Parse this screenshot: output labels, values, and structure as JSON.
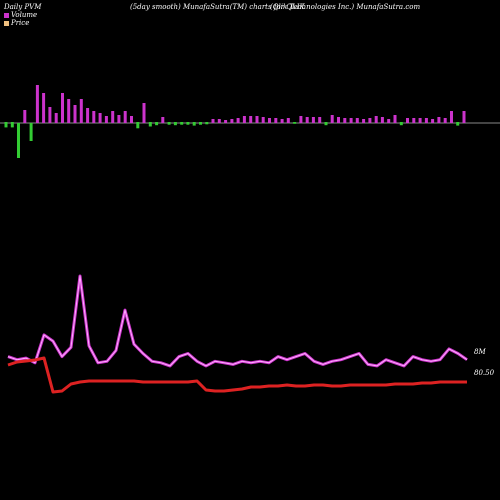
{
  "header": {
    "left": "Daily PVM",
    "center": "(5day smooth) MunafaSutra(TM) charts for QLIK",
    "right": "(Qlik Technologies Inc.) MunafaSutra.com"
  },
  "legend": [
    {
      "label": "Volume",
      "color": "#cc33cc"
    },
    {
      "label": "Price",
      "color": "#f0c080"
    }
  ],
  "chart_data": {
    "type": "bar+line",
    "volume_bars": [
      {
        "v": 0.12,
        "c": "neg"
      },
      {
        "v": 0.12,
        "c": "neg"
      },
      {
        "v": 0.35,
        "c": "neg"
      },
      {
        "v": 0.13,
        "c": "pos"
      },
      {
        "v": 0.18,
        "c": "neg"
      },
      {
        "v": 0.38,
        "c": "pos"
      },
      {
        "v": 0.3,
        "c": "pos"
      },
      {
        "v": 0.16,
        "c": "pos"
      },
      {
        "v": 0.1,
        "c": "pos"
      },
      {
        "v": 0.3,
        "c": "pos"
      },
      {
        "v": 0.24,
        "c": "pos"
      },
      {
        "v": 0.18,
        "c": "pos"
      },
      {
        "v": 0.24,
        "c": "pos"
      },
      {
        "v": 0.15,
        "c": "pos"
      },
      {
        "v": 0.12,
        "c": "pos"
      },
      {
        "v": 0.1,
        "c": "pos"
      },
      {
        "v": 0.07,
        "c": "pos"
      },
      {
        "v": 0.12,
        "c": "pos"
      },
      {
        "v": 0.08,
        "c": "pos"
      },
      {
        "v": 0.12,
        "c": "pos"
      },
      {
        "v": 0.07,
        "c": "pos"
      },
      {
        "v": 0.14,
        "c": "neg"
      },
      {
        "v": 0.2,
        "c": "pos"
      },
      {
        "v": 0.1,
        "c": "neg"
      },
      {
        "v": 0.07,
        "c": "neg"
      },
      {
        "v": 0.06,
        "c": "pos"
      },
      {
        "v": 0.06,
        "c": "neg"
      },
      {
        "v": 0.07,
        "c": "neg"
      },
      {
        "v": 0.06,
        "c": "neg"
      },
      {
        "v": 0.06,
        "c": "neg"
      },
      {
        "v": 0.08,
        "c": "neg"
      },
      {
        "v": 0.06,
        "c": "neg"
      },
      {
        "v": 0.05,
        "c": "neg"
      },
      {
        "v": 0.04,
        "c": "pos"
      },
      {
        "v": 0.04,
        "c": "pos"
      },
      {
        "v": 0.03,
        "c": "pos"
      },
      {
        "v": 0.04,
        "c": "pos"
      },
      {
        "v": 0.05,
        "c": "pos"
      },
      {
        "v": 0.07,
        "c": "pos"
      },
      {
        "v": 0.07,
        "c": "pos"
      },
      {
        "v": 0.07,
        "c": "pos"
      },
      {
        "v": 0.06,
        "c": "pos"
      },
      {
        "v": 0.05,
        "c": "pos"
      },
      {
        "v": 0.05,
        "c": "pos"
      },
      {
        "v": 0.04,
        "c": "pos"
      },
      {
        "v": 0.05,
        "c": "pos"
      },
      {
        "v": 0.04,
        "c": "neg"
      },
      {
        "v": 0.07,
        "c": "pos"
      },
      {
        "v": 0.06,
        "c": "pos"
      },
      {
        "v": 0.06,
        "c": "pos"
      },
      {
        "v": 0.06,
        "c": "pos"
      },
      {
        "v": 0.07,
        "c": "neg"
      },
      {
        "v": 0.08,
        "c": "pos"
      },
      {
        "v": 0.06,
        "c": "pos"
      },
      {
        "v": 0.05,
        "c": "pos"
      },
      {
        "v": 0.05,
        "c": "pos"
      },
      {
        "v": 0.05,
        "c": "pos"
      },
      {
        "v": 0.04,
        "c": "pos"
      },
      {
        "v": 0.05,
        "c": "pos"
      },
      {
        "v": 0.07,
        "c": "pos"
      },
      {
        "v": 0.06,
        "c": "pos"
      },
      {
        "v": 0.04,
        "c": "pos"
      },
      {
        "v": 0.08,
        "c": "pos"
      },
      {
        "v": 0.07,
        "c": "neg"
      },
      {
        "v": 0.05,
        "c": "pos"
      },
      {
        "v": 0.05,
        "c": "pos"
      },
      {
        "v": 0.05,
        "c": "pos"
      },
      {
        "v": 0.05,
        "c": "pos"
      },
      {
        "v": 0.04,
        "c": "pos"
      },
      {
        "v": 0.06,
        "c": "pos"
      },
      {
        "v": 0.05,
        "c": "pos"
      },
      {
        "v": 0.12,
        "c": "pos"
      },
      {
        "v": 0.08,
        "c": "neg"
      },
      {
        "v": 0.12,
        "c": "pos"
      }
    ],
    "volume_line": [
      28,
      26,
      27,
      24,
      42,
      38,
      28,
      34,
      80,
      35,
      24,
      25,
      32,
      58,
      36,
      30,
      25,
      24,
      22,
      28,
      30,
      25,
      22,
      25,
      24,
      23,
      25,
      24,
      25,
      24,
      28,
      26,
      28,
      30,
      25,
      23,
      25,
      26,
      28,
      30,
      23,
      22,
      26,
      24,
      22,
      28,
      26,
      25,
      26,
      33,
      30,
      26
    ],
    "price_line": [
      31,
      34,
      35,
      36,
      38,
      4,
      5,
      12,
      14,
      15,
      15,
      15,
      15,
      15,
      15,
      14,
      14,
      14,
      14,
      14,
      14,
      15,
      6,
      5,
      5,
      6,
      7,
      9,
      9,
      10,
      10,
      11,
      10,
      10,
      11,
      11,
      10,
      10,
      11,
      11,
      11,
      11,
      11,
      12,
      12,
      12,
      13,
      13,
      14,
      14,
      14,
      14
    ],
    "end_labels": {
      "volume": "8M",
      "price": "80.50"
    },
    "colors": {
      "pos": "#cc33cc",
      "neg": "#33cc33",
      "volume_line": "#cc33cc",
      "price_line": "#dd2222",
      "axis": "#888888"
    }
  }
}
